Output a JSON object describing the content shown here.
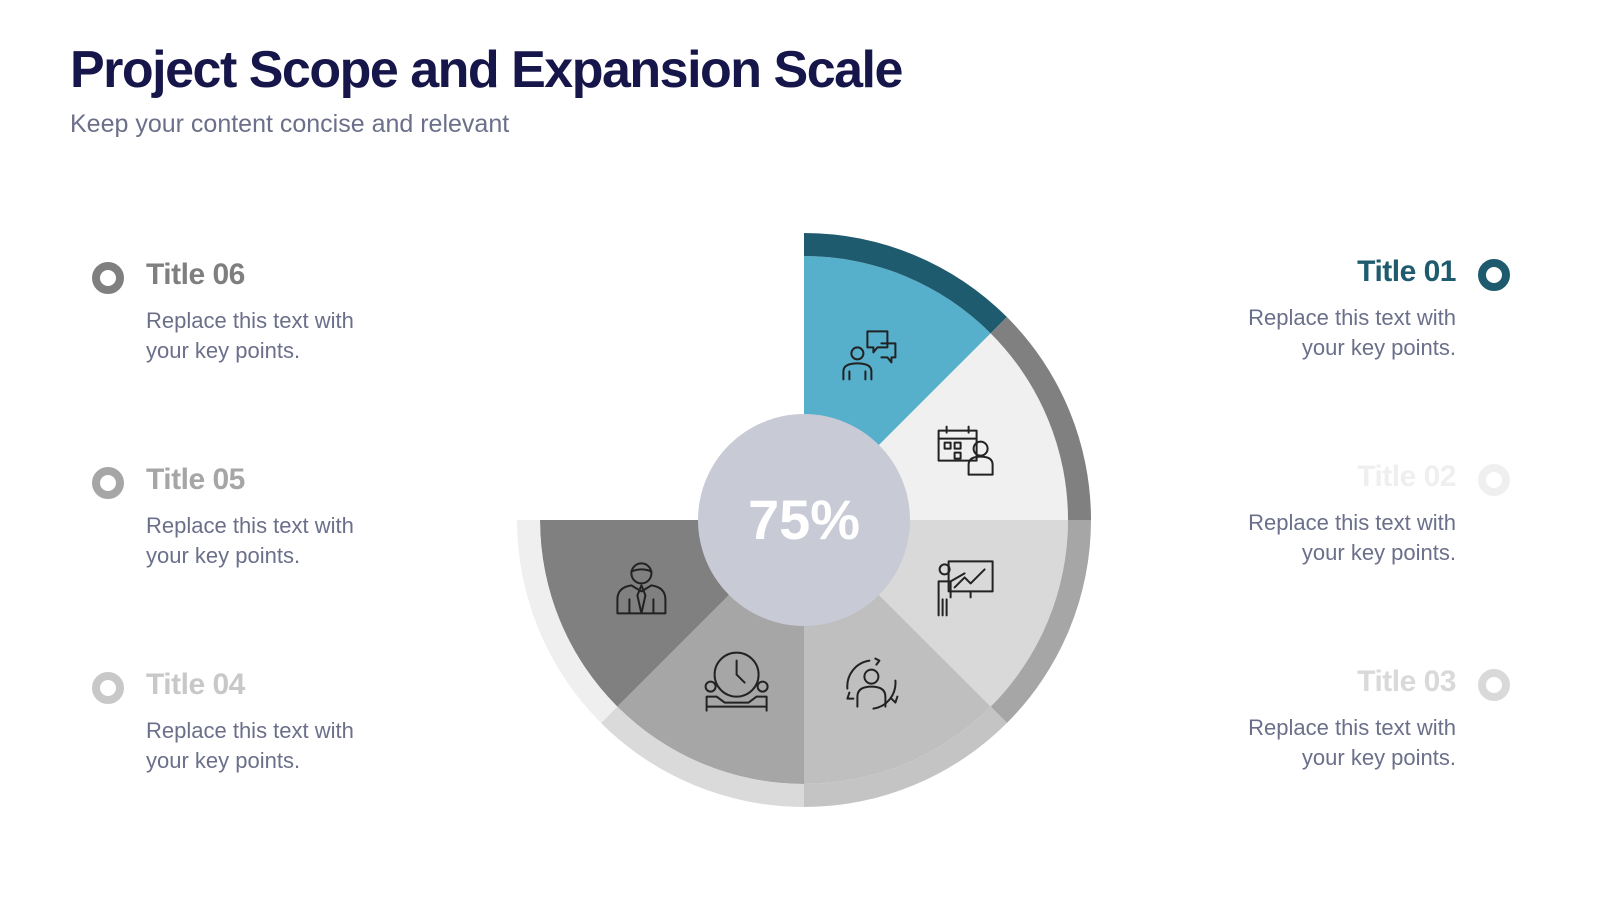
{
  "header": {
    "title": "Project Scope and Expansion Scale",
    "subtitle": "Keep your content concise and relevant"
  },
  "center": {
    "value_label": "75%",
    "color": "#c8cad6"
  },
  "chart_data": {
    "type": "pie",
    "center_label": "75%",
    "segments": [
      {
        "id": "01",
        "value": 1,
        "fill": "#56b0cb",
        "ring": "#1f5b6e",
        "icon": "people-chat-icon"
      },
      {
        "id": "02",
        "value": 1,
        "fill": "#f0f0f0",
        "ring": "#808080",
        "icon": "calendar-person-icon"
      },
      {
        "id": "03",
        "value": 1,
        "fill": "#d9d9d9",
        "ring": "#a6a6a6",
        "icon": "presentation-icon"
      },
      {
        "id": "04",
        "value": 1,
        "fill": "#bfbfbf",
        "ring": "#c4c4c4",
        "icon": "person-cycle-icon"
      },
      {
        "id": "05",
        "value": 1,
        "fill": "#a6a6a6",
        "ring": "#dadada",
        "icon": "clock-meeting-icon"
      },
      {
        "id": "06",
        "value": 1,
        "fill": "#808080",
        "ring": "#efefef",
        "icon": "businessman-icon"
      }
    ],
    "covered_fraction": 0.75
  },
  "items": {
    "t01": {
      "title": "Title 01",
      "body1": "Replace this text with",
      "body2": "your key points.",
      "color": "#1f5b6e"
    },
    "t02": {
      "title": "Title 02",
      "body1": "Replace this text with",
      "body2": "your key points.",
      "color": "#efefef"
    },
    "t03": {
      "title": "Title 03",
      "body1": "Replace this text with",
      "body2": "your key points.",
      "color": "#d9d9d9"
    },
    "t04": {
      "title": "Title 04",
      "body1": "Replace this text with",
      "body2": "your key points.",
      "color": "#c8c8c8"
    },
    "t05": {
      "title": "Title 05",
      "body1": "Replace this text with",
      "body2": "your key points.",
      "color": "#a6a6a6"
    },
    "t06": {
      "title": "Title 06",
      "body1": "Replace this text with",
      "body2": "your key points.",
      "color": "#7f7f7f"
    }
  }
}
